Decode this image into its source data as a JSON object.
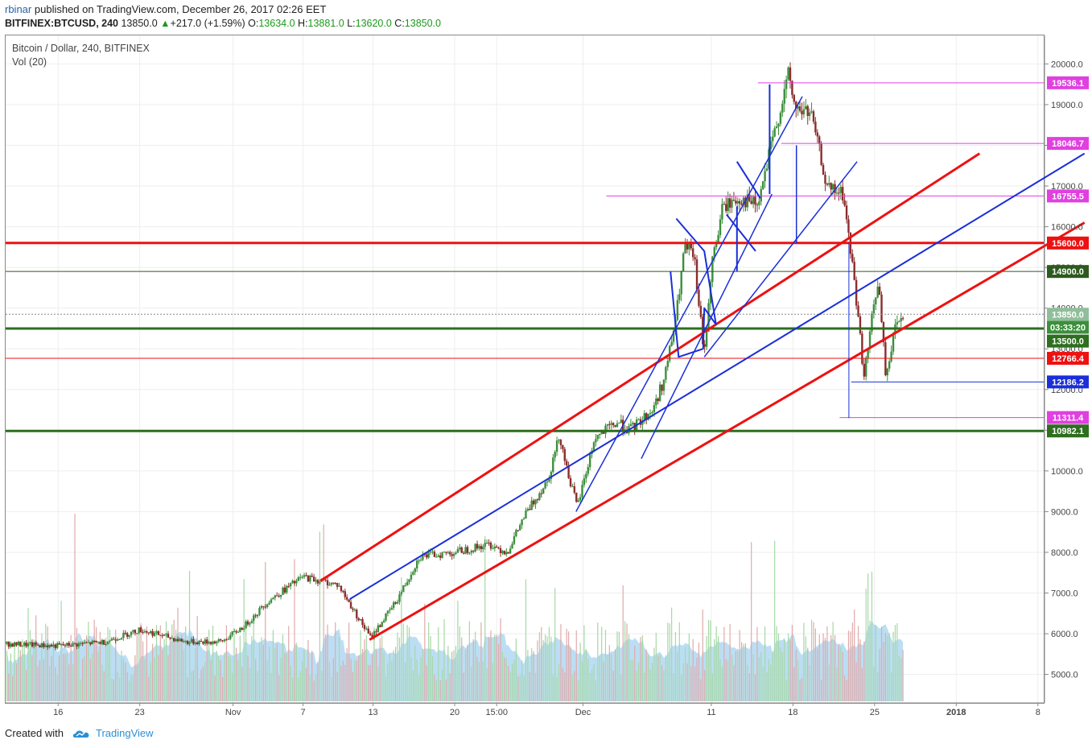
{
  "header": {
    "author": "rbinar",
    "published_text": "published on TradingView.com, December 26, 2017 02:26 EET",
    "symbol": "BITFINEX:BTCUSD, 240",
    "last": "13850.0",
    "change_arrow": "▲",
    "change": "+217.0 (+1.59%)",
    "open_label": "O:",
    "open": "13634.0",
    "high_label": "H:",
    "high": "13881.0",
    "low_label": "L:",
    "low": "13620.0",
    "close_label": "C:",
    "close": "13850.0"
  },
  "legend": {
    "title": "Bitcoin / Dollar, 240, BITFINEX",
    "volume": "Vol (20)"
  },
  "footer": {
    "created_with": "Created with",
    "brand": "TradingView",
    "logo_icon": "tradingview-cloud-icon"
  },
  "colors": {
    "up": "#3c8f3c",
    "down": "#8b2d2d",
    "red_line": "#ee1111",
    "blue_line": "#1a2fd8",
    "magenta_line": "#e040e0",
    "green_line": "#2d6e1f",
    "volume_fill": "#9ed0f0"
  },
  "chart_data": {
    "type": "candlestick",
    "x_tick_labels": [
      "16",
      "23",
      "Nov",
      "7",
      "13",
      "20",
      "15:00",
      "Dec",
      "11",
      "18",
      "25",
      "2018",
      "8"
    ],
    "x_tick_days": [
      -46,
      -39,
      -31,
      -25,
      -19,
      -12,
      -8.4,
      -1,
      10,
      17,
      24,
      31,
      38
    ],
    "x_range_days": [
      -50.5,
      38.5
    ],
    "y_axis_ticks": [
      5000,
      6000,
      7000,
      8000,
      9000,
      10000,
      11000,
      12000,
      13000,
      14000,
      15000,
      16000,
      17000,
      18000,
      19000,
      20000
    ],
    "y_range": [
      4300,
      20700
    ],
    "price_tags": [
      {
        "label": "19536.1",
        "value": 19536.1,
        "color": "#e040e0"
      },
      {
        "label": "18046.7",
        "value": 18046.7,
        "color": "#e040e0"
      },
      {
        "label": "16755.5",
        "value": 16755.5,
        "color": "#e040e0"
      },
      {
        "label": "15600.0",
        "value": 15600,
        "color": "#ee1111"
      },
      {
        "label": "14900.0",
        "value": 14900,
        "color": "#2d5a1e"
      },
      {
        "label": "13850.0",
        "value": 13850,
        "color": "#8fbf9a"
      },
      {
        "label": "03:33:20",
        "value": 13530,
        "color": "#3c8f3c"
      },
      {
        "label": "13500.0",
        "value": 13190,
        "color": "#2d6e1f"
      },
      {
        "label": "12766.4",
        "value": 12766.4,
        "color": "#ee1111"
      },
      {
        "label": "12186.2",
        "value": 12186.2,
        "color": "#1a2fd8"
      },
      {
        "label": "11311.4",
        "value": 11311.4,
        "color": "#e040e0"
      },
      {
        "label": "10982.1",
        "value": 10982.1,
        "color": "#2d6e1f"
      }
    ],
    "path_anchors": [
      [
        -50.5,
        5750
      ],
      [
        -46,
        5700
      ],
      [
        -42,
        5800
      ],
      [
        -39,
        6100
      ],
      [
        -35,
        5800
      ],
      [
        -32,
        5800
      ],
      [
        -30,
        6200
      ],
      [
        -28,
        6800
      ],
      [
        -25,
        7400
      ],
      [
        -22,
        7200
      ],
      [
        -20.5,
        6500
      ],
      [
        -19.2,
        5900
      ],
      [
        -17,
        6800
      ],
      [
        -15,
        7900
      ],
      [
        -12,
        8000
      ],
      [
        -9,
        8200
      ],
      [
        -7.5,
        8000
      ],
      [
        -6,
        8900
      ],
      [
        -4,
        9800
      ],
      [
        -3,
        10900
      ],
      [
        -2.5,
        10200
      ],
      [
        -1.5,
        9100
      ],
      [
        0,
        10800
      ],
      [
        2,
        11200
      ],
      [
        3,
        11000
      ],
      [
        5,
        11500
      ],
      [
        6,
        12300
      ],
      [
        7,
        13800
      ],
      [
        7.7,
        15500
      ],
      [
        8.5,
        15300
      ],
      [
        9.4,
        12800
      ],
      [
        10,
        15000
      ],
      [
        11,
        16500
      ],
      [
        12.5,
        16700
      ],
      [
        14,
        16500
      ],
      [
        15,
        17800
      ],
      [
        16,
        19000
      ],
      [
        16.6,
        19700
      ],
      [
        17.2,
        18900
      ],
      [
        18.5,
        18800
      ],
      [
        20,
        16900
      ],
      [
        21.3,
        16800
      ],
      [
        22.3,
        14600
      ],
      [
        23.1,
        12300
      ],
      [
        23.8,
        13800
      ],
      [
        24.3,
        14700
      ],
      [
        25,
        12200
      ],
      [
        25.6,
        13400
      ],
      [
        26.1,
        13700
      ],
      [
        26.5,
        13850
      ]
    ],
    "drawn_lines": [
      {
        "color": "#ee1111",
        "width": 3,
        "points": [
          [
            -23.5,
            7300
          ],
          [
            33,
            17800
          ]
        ]
      },
      {
        "color": "#ee1111",
        "width": 3,
        "points": [
          [
            -19.3,
            5850
          ],
          [
            42,
            16100
          ]
        ]
      },
      {
        "color": "#1a2fd8",
        "width": 2,
        "points": [
          [
            -21,
            6850
          ],
          [
            42,
            17800
          ]
        ]
      },
      {
        "color": "#1a2fd8",
        "width": 1.5,
        "points": [
          [
            -1.6,
            9000
          ],
          [
            17.8,
            19200
          ]
        ]
      },
      {
        "color": "#1a2fd8",
        "width": 1.5,
        "points": [
          [
            9.4,
            12800
          ],
          [
            22.5,
            17600
          ]
        ]
      },
      {
        "color": "#1a2fd8",
        "width": 1.5,
        "points": [
          [
            4,
            10300
          ],
          [
            15.2,
            16800
          ]
        ]
      },
      {
        "color": "#1a2fd8",
        "width": 2,
        "points": [
          [
            7,
            16200
          ],
          [
            9.4,
            15400
          ],
          [
            10.4,
            13600
          ],
          [
            9.4,
            14000
          ],
          [
            9.3,
            13000
          ],
          [
            7.2,
            12800
          ],
          [
            6.5,
            14900
          ]
        ]
      },
      {
        "color": "#1a2fd8",
        "width": 2,
        "points": [
          [
            11.3,
            16300
          ],
          [
            13.8,
            15400
          ]
        ]
      },
      {
        "color": "#1a2fd8",
        "width": 2,
        "points": [
          [
            12.2,
            17600
          ],
          [
            14.2,
            16700
          ]
        ]
      },
      {
        "color": "#1a2fd8",
        "width": 2,
        "points": [
          [
            12.2,
            14900
          ],
          [
            12.2,
            16500
          ]
        ]
      },
      {
        "color": "#1a2fd8",
        "width": 2,
        "points": [
          [
            15,
            16800
          ],
          [
            15,
            19500
          ]
        ]
      },
      {
        "color": "#1a2fd8",
        "width": 1.5,
        "points": [
          [
            17.3,
            15600
          ],
          [
            17.3,
            18000
          ]
        ]
      },
      {
        "color": "#1a2fd8",
        "width": 1,
        "points": [
          [
            21.8,
            11300
          ],
          [
            21.8,
            15600
          ]
        ]
      },
      {
        "color": "#1a2fd8",
        "width": 1,
        "points": [
          [
            22,
            12186.2
          ],
          [
            38.5,
            12186.2
          ]
        ]
      }
    ],
    "horizontal_levels": [
      {
        "value": 19536.1,
        "color": "#e040e0",
        "width": 1,
        "from_day": 14
      },
      {
        "value": 18046.7,
        "color": "#e040e0",
        "width": 1,
        "from_day": 16
      },
      {
        "value": 16755.5,
        "color": "#e040e0",
        "width": 1,
        "from_day": 1
      },
      {
        "value": 15600,
        "color": "#ee1111",
        "width": 3,
        "from_day": -50.5
      },
      {
        "value": 14900,
        "color": "#2d5a1e",
        "width": 1,
        "from_day": -50.5
      },
      {
        "value": 13850,
        "color": "#888888",
        "width": 1,
        "from_day": -50.5,
        "dashed": true
      },
      {
        "value": 13500,
        "color": "#2d6e1f",
        "width": 3,
        "from_day": -50.5
      },
      {
        "value": 12766.4,
        "color": "#ee1111",
        "width": 1,
        "from_day": -50.5
      },
      {
        "value": 11311.4,
        "color": "#e040e0",
        "width": 1,
        "from_day": 21
      },
      {
        "value": 10982.1,
        "color": "#2d6e1f",
        "width": 3,
        "from_day": -50.5
      }
    ]
  }
}
